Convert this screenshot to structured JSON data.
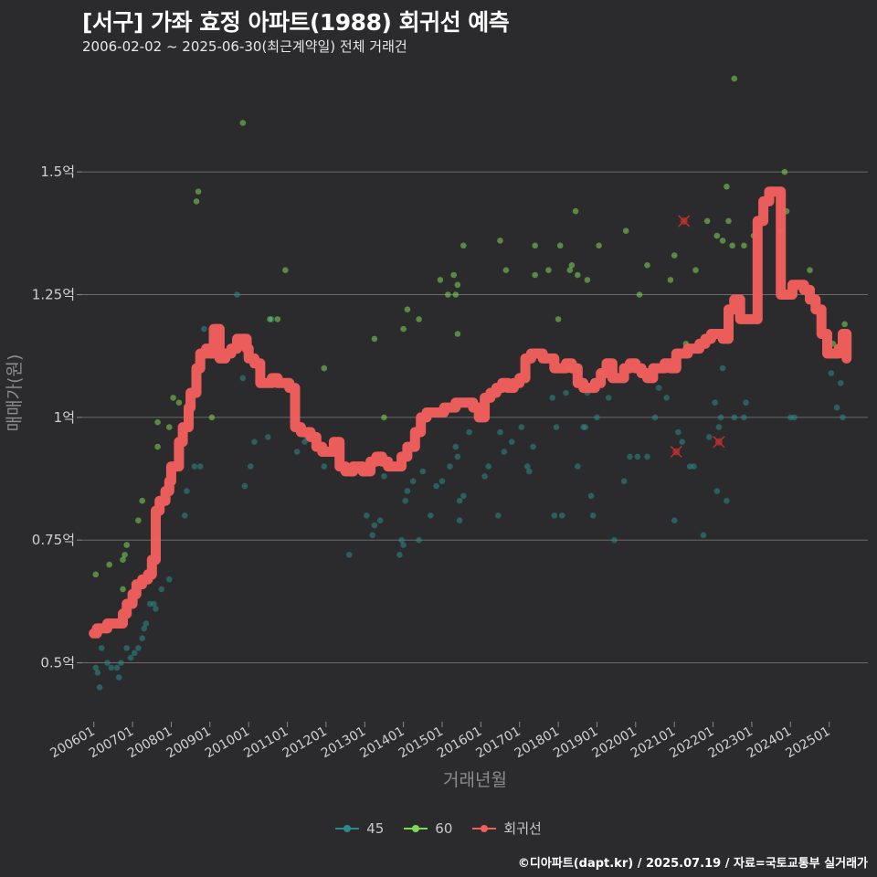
{
  "title": "[서구] 가좌 효정 아파트(1988) 회귀선 예측",
  "subtitle": "2006-02-02 ~ 2025-06-30(최근계약일) 전체 거래건",
  "caption": "©디아파트(dapt.kr) / 2025.07.19 / 자료=국토교통부 실거래가",
  "legend": [
    {
      "label": "45",
      "color": "#2c8a8a"
    },
    {
      "label": "60",
      "color": "#7ed957"
    },
    {
      "label": "회귀선",
      "color": "#f25f5c"
    }
  ],
  "chart_data": {
    "type": "scatter",
    "xlabel": "거래년월",
    "ylabel": "매매가(원)",
    "xlim": [
      2005.7,
      2026.0
    ],
    "ylim": [
      0.38,
      1.72
    ],
    "x_ticks": [
      {
        "value": 2006,
        "label": "200601"
      },
      {
        "value": 2007,
        "label": "200701"
      },
      {
        "value": 2008,
        "label": "200801"
      },
      {
        "value": 2009,
        "label": "200901"
      },
      {
        "value": 2010,
        "label": "201001"
      },
      {
        "value": 2011,
        "label": "201101"
      },
      {
        "value": 2012,
        "label": "201201"
      },
      {
        "value": 2013,
        "label": "201301"
      },
      {
        "value": 2014,
        "label": "201401"
      },
      {
        "value": 2015,
        "label": "201501"
      },
      {
        "value": 2016,
        "label": "201601"
      },
      {
        "value": 2017,
        "label": "201701"
      },
      {
        "value": 2018,
        "label": "201801"
      },
      {
        "value": 2019,
        "label": "201901"
      },
      {
        "value": 2020,
        "label": "202001"
      },
      {
        "value": 2021,
        "label": "202101"
      },
      {
        "value": 2022,
        "label": "202201"
      },
      {
        "value": 2023,
        "label": "202301"
      },
      {
        "value": 2024,
        "label": "202401"
      },
      {
        "value": 2025,
        "label": "202501"
      }
    ],
    "y_ticks": [
      {
        "value": 0.5,
        "label": "0.5억"
      },
      {
        "value": 0.75,
        "label": "0.75억"
      },
      {
        "value": 1.0,
        "label": "1억"
      },
      {
        "value": 1.25,
        "label": "1.25억"
      },
      {
        "value": 1.5,
        "label": "1.5억"
      }
    ],
    "series": [
      {
        "name": "45",
        "color": "#2c8a8a",
        "points": [
          [
            2006.05,
            0.49
          ],
          [
            2006.1,
            0.48
          ],
          [
            2006.15,
            0.45
          ],
          [
            2006.2,
            0.53
          ],
          [
            2006.35,
            0.5
          ],
          [
            2006.45,
            0.49
          ],
          [
            2006.6,
            0.49
          ],
          [
            2006.65,
            0.47
          ],
          [
            2006.7,
            0.5
          ],
          [
            2006.85,
            0.53
          ],
          [
            2006.95,
            0.51
          ],
          [
            2007.05,
            0.52
          ],
          [
            2007.15,
            0.53
          ],
          [
            2007.25,
            0.55
          ],
          [
            2007.3,
            0.57
          ],
          [
            2007.35,
            0.58
          ],
          [
            2007.45,
            0.62
          ],
          [
            2007.55,
            0.62
          ],
          [
            2007.6,
            0.61
          ],
          [
            2007.75,
            0.65
          ],
          [
            2007.95,
            0.67
          ],
          [
            2008.35,
            0.8
          ],
          [
            2008.4,
            0.85
          ],
          [
            2008.6,
            0.9
          ],
          [
            2008.75,
            0.9
          ],
          [
            2008.85,
            1.18
          ],
          [
            2009.7,
            1.25
          ],
          [
            2009.85,
            1.08
          ],
          [
            2009.9,
            0.86
          ],
          [
            2010.05,
            0.9
          ],
          [
            2010.15,
            0.95
          ],
          [
            2010.5,
            0.96
          ],
          [
            2010.6,
            1.2
          ],
          [
            2011.25,
            0.93
          ],
          [
            2011.45,
            0.95
          ],
          [
            2011.5,
            0.96
          ],
          [
            2011.95,
            0.9
          ],
          [
            2012.6,
            0.72
          ],
          [
            2013.05,
            0.8
          ],
          [
            2013.2,
            0.76
          ],
          [
            2013.25,
            0.78
          ],
          [
            2013.4,
            0.79
          ],
          [
            2013.5,
            0.88
          ],
          [
            2013.75,
            0.9
          ],
          [
            2013.9,
            0.72
          ],
          [
            2013.95,
            0.75
          ],
          [
            2014.0,
            0.74
          ],
          [
            2014.05,
            0.83
          ],
          [
            2014.1,
            0.85
          ],
          [
            2014.25,
            0.87
          ],
          [
            2014.4,
            0.75
          ],
          [
            2014.5,
            0.89
          ],
          [
            2014.7,
            0.8
          ],
          [
            2014.85,
            0.86
          ],
          [
            2015.0,
            0.87
          ],
          [
            2015.2,
            0.9
          ],
          [
            2015.35,
            0.94
          ],
          [
            2015.4,
            0.92
          ],
          [
            2015.45,
            0.83
          ],
          [
            2015.45,
            0.79
          ],
          [
            2015.55,
            0.84
          ],
          [
            2015.7,
            0.97
          ],
          [
            2016.1,
            0.88
          ],
          [
            2016.2,
            0.9
          ],
          [
            2016.45,
            0.8
          ],
          [
            2016.5,
            0.97
          ],
          [
            2016.6,
            0.93
          ],
          [
            2016.8,
            0.95
          ],
          [
            2017.05,
            0.98
          ],
          [
            2017.2,
            0.9
          ],
          [
            2017.25,
            0.89
          ],
          [
            2017.35,
            0.94
          ],
          [
            2017.85,
            1.04
          ],
          [
            2017.9,
            0.8
          ],
          [
            2017.95,
            0.98
          ],
          [
            2018.1,
            0.8
          ],
          [
            2018.2,
            1.05
          ],
          [
            2018.3,
            1.1
          ],
          [
            2018.5,
            0.9
          ],
          [
            2018.65,
            0.98
          ],
          [
            2018.7,
            0.98
          ],
          [
            2018.75,
            1.05
          ],
          [
            2018.85,
            0.84
          ],
          [
            2018.9,
            0.8
          ],
          [
            2019.0,
            1.0
          ],
          [
            2019.15,
            1.09
          ],
          [
            2019.3,
            1.04
          ],
          [
            2019.45,
            0.75
          ],
          [
            2019.7,
            0.87
          ],
          [
            2019.85,
            0.92
          ],
          [
            2020.05,
            0.92
          ],
          [
            2020.3,
            0.92
          ],
          [
            2020.5,
            1.0
          ],
          [
            2020.6,
            1.06
          ],
          [
            2020.8,
            1.04
          ],
          [
            2021.0,
            0.79
          ],
          [
            2021.1,
            0.97
          ],
          [
            2021.2,
            0.95
          ],
          [
            2021.4,
            0.9
          ],
          [
            2021.5,
            0.9
          ],
          [
            2021.75,
            0.76
          ],
          [
            2021.9,
            0.96
          ],
          [
            2022.05,
            1.03
          ],
          [
            2022.1,
            0.85
          ],
          [
            2022.15,
            0.98
          ],
          [
            2022.2,
            1.0
          ],
          [
            2022.25,
            1.1
          ],
          [
            2022.35,
            0.83
          ],
          [
            2022.55,
            1.0
          ],
          [
            2022.8,
            1.0
          ],
          [
            2022.85,
            1.03
          ],
          [
            2024.0,
            1.0
          ],
          [
            2024.1,
            1.0
          ],
          [
            2025.05,
            1.09
          ],
          [
            2025.2,
            1.02
          ],
          [
            2025.3,
            1.07
          ],
          [
            2025.35,
            1.0
          ]
        ]
      },
      {
        "name": "60",
        "color": "#7ed957",
        "points": [
          [
            2006.05,
            0.68
          ],
          [
            2006.4,
            0.7
          ],
          [
            2006.75,
            0.71
          ],
          [
            2006.8,
            0.72
          ],
          [
            2006.85,
            0.74
          ],
          [
            2006.75,
            0.65
          ],
          [
            2007.15,
            0.79
          ],
          [
            2007.25,
            0.83
          ],
          [
            2007.65,
            0.94
          ],
          [
            2007.65,
            0.99
          ],
          [
            2007.95,
            0.98
          ],
          [
            2008.05,
            1.04
          ],
          [
            2008.2,
            1.03
          ],
          [
            2008.65,
            1.44
          ],
          [
            2008.7,
            1.46
          ],
          [
            2009.05,
            1.0
          ],
          [
            2009.85,
            1.6
          ],
          [
            2010.55,
            1.2
          ],
          [
            2010.75,
            1.2
          ],
          [
            2010.95,
            1.3
          ],
          [
            2011.95,
            1.1
          ],
          [
            2013.5,
            1.0
          ],
          [
            2013.25,
            1.16
          ],
          [
            2014.1,
            1.22
          ],
          [
            2014.0,
            1.18
          ],
          [
            2014.4,
            1.2
          ],
          [
            2014.95,
            1.28
          ],
          [
            2015.15,
            1.25
          ],
          [
            2015.3,
            1.29
          ],
          [
            2015.35,
            1.25
          ],
          [
            2015.4,
            1.27
          ],
          [
            2015.4,
            1.17
          ],
          [
            2015.55,
            1.35
          ],
          [
            2016.5,
            1.36
          ],
          [
            2016.65,
            1.3
          ],
          [
            2017.4,
            1.35
          ],
          [
            2017.4,
            1.29
          ],
          [
            2017.75,
            1.3
          ],
          [
            2018.05,
            1.35
          ],
          [
            2018.0,
            1.2
          ],
          [
            2018.3,
            1.3
          ],
          [
            2018.35,
            1.31
          ],
          [
            2018.45,
            1.42
          ],
          [
            2018.5,
            1.29
          ],
          [
            2018.75,
            1.28
          ],
          [
            2019.05,
            1.35
          ],
          [
            2019.75,
            1.38
          ],
          [
            2020.1,
            1.25
          ],
          [
            2020.3,
            1.31
          ],
          [
            2020.9,
            1.28
          ],
          [
            2021.0,
            1.33
          ],
          [
            2021.3,
            1.15
          ],
          [
            2021.55,
            1.3
          ],
          [
            2021.85,
            1.4
          ],
          [
            2022.1,
            1.37
          ],
          [
            2022.25,
            1.36
          ],
          [
            2022.35,
            1.47
          ],
          [
            2022.4,
            1.4
          ],
          [
            2022.5,
            1.35
          ],
          [
            2022.55,
            1.69
          ],
          [
            2022.8,
            1.35
          ],
          [
            2023.05,
            1.37
          ],
          [
            2023.75,
            1.38
          ],
          [
            2023.85,
            1.5
          ],
          [
            2023.9,
            1.42
          ],
          [
            2024.5,
            1.3
          ],
          [
            2025.1,
            1.15
          ],
          [
            2025.4,
            1.19
          ]
        ]
      }
    ],
    "outliers": [
      [
        2021.25,
        1.4
      ],
      [
        2021.05,
        0.93
      ],
      [
        2022.15,
        0.95
      ]
    ],
    "regression": {
      "name": "회귀선",
      "color": "#f25f5c",
      "x": [
        2006.0,
        2006.08,
        2006.25,
        2006.35,
        2006.5,
        2006.75,
        2006.85,
        2007.0,
        2007.1,
        2007.25,
        2007.4,
        2007.5,
        2007.6,
        2007.7,
        2007.85,
        2007.95,
        2008.0,
        2008.2,
        2008.3,
        2008.45,
        2008.5,
        2008.65,
        2008.75,
        2008.9,
        2009.0,
        2009.1,
        2009.25,
        2009.4,
        2009.55,
        2009.7,
        2009.8,
        2009.95,
        2010.0,
        2010.15,
        2010.3,
        2010.45,
        2010.6,
        2010.75,
        2010.9,
        2011.05,
        2011.2,
        2011.35,
        2011.6,
        2011.75,
        2011.9,
        2012.05,
        2012.2,
        2012.35,
        2012.5,
        2012.7,
        2012.8,
        2012.95,
        2013.15,
        2013.3,
        2013.45,
        2013.6,
        2013.75,
        2013.95,
        2014.1,
        2014.3,
        2014.45,
        2014.6,
        2014.75,
        2014.9,
        2015.05,
        2015.2,
        2015.35,
        2015.5,
        2015.65,
        2015.8,
        2015.95,
        2016.1,
        2016.25,
        2016.4,
        2016.55,
        2016.7,
        2016.85,
        2017.0,
        2017.15,
        2017.3,
        2017.45,
        2017.6,
        2017.75,
        2017.9,
        2018.05,
        2018.2,
        2018.35,
        2018.5,
        2018.65,
        2018.8,
        2018.95,
        2019.1,
        2019.25,
        2019.4,
        2019.55,
        2019.7,
        2019.85,
        2020.0,
        2020.15,
        2020.3,
        2020.45,
        2020.6,
        2020.75,
        2020.9,
        2021.05,
        2021.2,
        2021.35,
        2021.5,
        2021.65,
        2021.8,
        2021.95,
        2022.1,
        2022.25,
        2022.4,
        2022.55,
        2022.7,
        2022.85,
        2023.0,
        2023.15,
        2023.3,
        2023.45,
        2023.6,
        2023.75,
        2023.9,
        2024.05,
        2024.2,
        2024.35,
        2024.5,
        2024.65,
        2024.8,
        2024.95,
        2025.1,
        2025.25,
        2025.35,
        2025.45
      ],
      "y": [
        0.56,
        0.57,
        0.57,
        0.58,
        0.58,
        0.6,
        0.62,
        0.64,
        0.66,
        0.67,
        0.68,
        0.71,
        0.81,
        0.83,
        0.85,
        0.87,
        0.9,
        0.95,
        0.98,
        1.02,
        1.05,
        1.1,
        1.13,
        1.14,
        1.13,
        1.18,
        1.12,
        1.13,
        1.14,
        1.16,
        1.16,
        1.14,
        1.12,
        1.11,
        1.07,
        1.07,
        1.08,
        1.07,
        1.07,
        1.06,
        0.98,
        0.97,
        0.96,
        0.94,
        0.93,
        0.93,
        0.95,
        0.9,
        0.89,
        0.9,
        0.9,
        0.89,
        0.91,
        0.92,
        0.91,
        0.9,
        0.9,
        0.92,
        0.94,
        0.97,
        1.0,
        1.01,
        1.01,
        1.01,
        1.02,
        1.02,
        1.03,
        1.03,
        1.03,
        1.02,
        1.0,
        1.04,
        1.05,
        1.06,
        1.07,
        1.06,
        1.07,
        1.08,
        1.12,
        1.13,
        1.13,
        1.12,
        1.12,
        1.1,
        1.1,
        1.11,
        1.1,
        1.07,
        1.06,
        1.06,
        1.07,
        1.09,
        1.11,
        1.08,
        1.08,
        1.1,
        1.11,
        1.1,
        1.09,
        1.08,
        1.1,
        1.1,
        1.11,
        1.1,
        1.13,
        1.13,
        1.14,
        1.14,
        1.15,
        1.16,
        1.17,
        1.17,
        1.16,
        1.22,
        1.24,
        1.2,
        1.2,
        1.2,
        1.4,
        1.44,
        1.46,
        1.46,
        1.25,
        1.25,
        1.27,
        1.27,
        1.26,
        1.24,
        1.22,
        1.17,
        1.13,
        1.13,
        1.14,
        1.17,
        1.12
      ]
    }
  }
}
